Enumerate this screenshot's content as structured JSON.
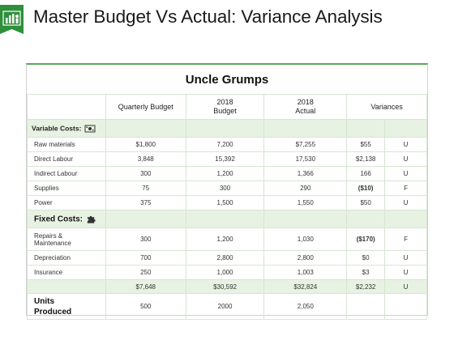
{
  "title": "Master Budget Vs Actual: Variance Analysis",
  "company": "Uncle Grumps",
  "columns": [
    "Quarterly Budget",
    "2018\nBudget",
    "2018\nActual",
    "Variances"
  ],
  "sections": {
    "variable_label": "Variable Costs:",
    "fixed_label": "Fixed Costs:",
    "units_label": "Units\nProduced"
  },
  "variable_rows": [
    {
      "label": "Raw materials",
      "quarterly": "$1,800",
      "budget": "7,200",
      "actual": "$7,255",
      "variance": "$55",
      "flag": "U",
      "bold": false
    },
    {
      "label": "Direct Labour",
      "quarterly": "3,848",
      "budget": "15,392",
      "actual": "17,530",
      "variance": "$2,138",
      "flag": "U",
      "bold": false
    },
    {
      "label": "Indirect Labour",
      "quarterly": "300",
      "budget": "1,200",
      "actual": "1,366",
      "variance": "166",
      "flag": "U",
      "bold": false
    },
    {
      "label": "Supplies",
      "quarterly": "75",
      "budget": "300",
      "actual": "290",
      "variance": "($10)",
      "flag": "F",
      "bold": true
    },
    {
      "label": "Power",
      "quarterly": "375",
      "budget": "1,500",
      "actual": "1,550",
      "variance": "$50",
      "flag": "U",
      "bold": false
    }
  ],
  "fixed_rows": [
    {
      "label": "Repairs &\nMaintenance",
      "quarterly": "300",
      "budget": "1,200",
      "actual": "1,030",
      "variance": "($170)",
      "flag": "F",
      "bold": true
    },
    {
      "label": "Depreciation",
      "quarterly": "700",
      "budget": "2,800",
      "actual": "2,800",
      "variance": "$0",
      "flag": "U",
      "bold": false
    },
    {
      "label": "Insurance",
      "quarterly": "250",
      "budget": "1,000",
      "actual": "1,003",
      "variance": "$3",
      "flag": "U",
      "bold": false
    }
  ],
  "totals": {
    "quarterly": "$7,648",
    "budget": "$30,592",
    "actual": "$32,824",
    "variance": "$2,232",
    "flag": "U"
  },
  "units": {
    "quarterly": "500",
    "budget": "2000",
    "actual": "2,050"
  },
  "colors": {
    "accent": "#5aa85a",
    "band": "#e8f2e3",
    "logo": "#2f8f3a"
  },
  "icons": {
    "logo": "chart-people-icon",
    "variable": "money-icon",
    "fixed": "puzzle-icon"
  }
}
